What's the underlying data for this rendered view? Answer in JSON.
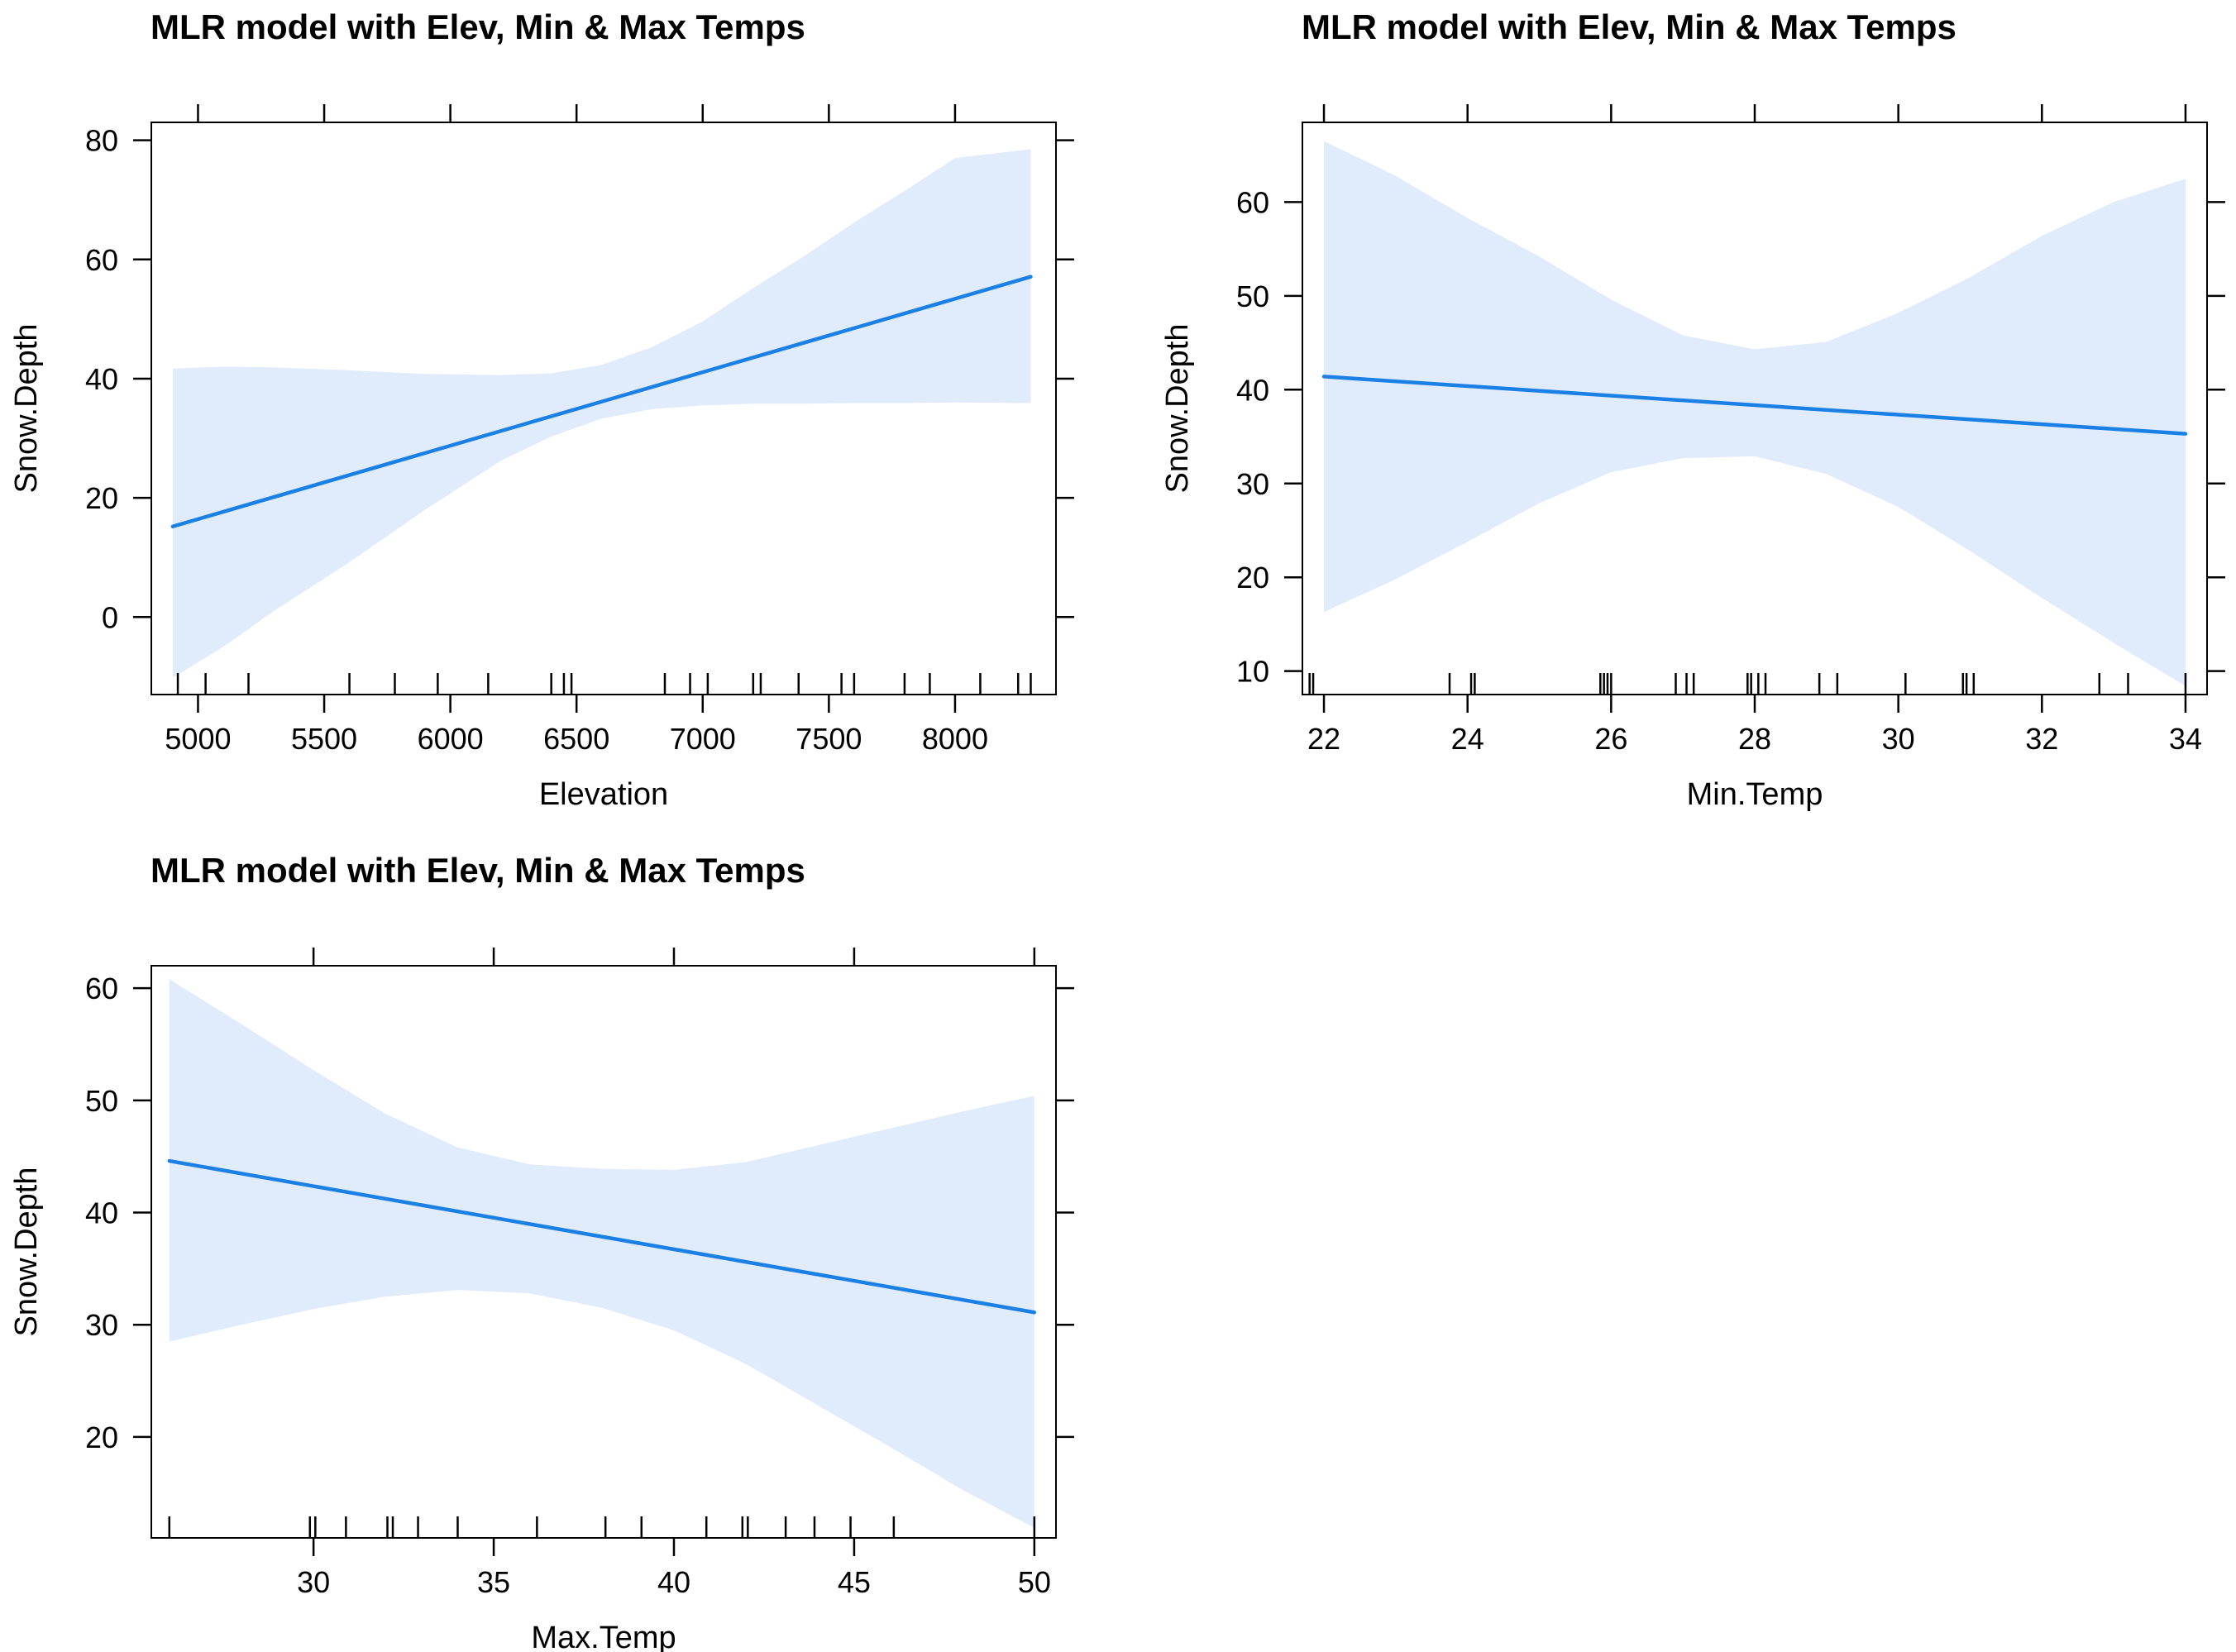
{
  "colors": {
    "band": "#e0ebfc",
    "line": "#1a80e6"
  },
  "chart_data": [
    {
      "type": "line",
      "title": "MLR model with Elev, Min & Max Temps",
      "xlabel": "Elevation",
      "ylabel": "Snow.Depth",
      "xlim": [
        4815,
        8400
      ],
      "ylim": [
        -13,
        83
      ],
      "xticks": [
        5000,
        5500,
        6000,
        6500,
        7000,
        7500,
        8000
      ],
      "xtick_labels": [
        "5000",
        "5500",
        "6000",
        "6500",
        "7000",
        "7500",
        "8000"
      ],
      "yticks": [
        0,
        20,
        40,
        60,
        80
      ],
      "ytick_labels": [
        "0",
        "20",
        "40",
        "60",
        "80"
      ],
      "fit": {
        "x": [
          4900,
          8300
        ],
        "y": [
          15.2,
          57.1
        ]
      },
      "band": {
        "x": [
          4900,
          5100,
          5300,
          5600,
          5900,
          6200,
          6400,
          6600,
          6800,
          7000,
          7200,
          7400,
          7600,
          7800,
          8000,
          8300
        ],
        "upper": [
          41.7,
          42.0,
          41.9,
          41.4,
          40.8,
          40.6,
          40.9,
          42.3,
          45.3,
          49.6,
          55.2,
          60.5,
          66.2,
          71.5,
          77.0,
          78.5
        ],
        "lower": [
          -10.2,
          -5.0,
          1.0,
          9.2,
          18.0,
          26.2,
          30.3,
          33.3,
          34.9,
          35.5,
          35.8,
          35.8,
          35.9,
          35.9,
          36.0,
          35.9
        ]
      },
      "rug": [
        4920,
        5030,
        5200,
        5600,
        5780,
        5950,
        6150,
        6400,
        6450,
        6480,
        6850,
        6950,
        7020,
        7200,
        7230,
        7380,
        7550,
        7600,
        7800,
        7900,
        8100,
        8250,
        8300
      ]
    },
    {
      "type": "line",
      "title": "MLR model with Elev, Min & Max Temps",
      "xlabel": "Min.Temp",
      "ylabel": "Snow.Depth",
      "xlim": [
        21.7,
        34.3
      ],
      "ylim": [
        7.5,
        68.5
      ],
      "xticks": [
        22,
        24,
        26,
        28,
        30,
        32,
        34
      ],
      "xtick_labels": [
        "22",
        "24",
        "26",
        "28",
        "30",
        "32",
        "34"
      ],
      "yticks": [
        10,
        20,
        30,
        40,
        50,
        60
      ],
      "ytick_labels": [
        "10",
        "20",
        "30",
        "40",
        "50",
        "60"
      ],
      "fit": {
        "x": [
          22,
          34
        ],
        "y": [
          41.4,
          35.3
        ]
      },
      "band": {
        "x": [
          22,
          23,
          24,
          25,
          26,
          27,
          28,
          29,
          30,
          31,
          32,
          33,
          34
        ],
        "upper": [
          66.5,
          62.8,
          58.3,
          54.2,
          49.6,
          45.8,
          44.3,
          45.1,
          48.2,
          52.0,
          56.4,
          60.0,
          62.5
        ],
        "lower": [
          16.3,
          19.8,
          23.8,
          27.9,
          31.2,
          32.7,
          32.9,
          31.0,
          27.5,
          22.8,
          17.8,
          13.0,
          8.4
        ]
      },
      "rug": [
        21.8,
        21.85,
        23.75,
        24.05,
        24.1,
        25.85,
        25.9,
        25.95,
        26.0,
        26.9,
        27.05,
        27.15,
        27.9,
        27.95,
        28.05,
        28.15,
        28.9,
        29.15,
        30.1,
        30.9,
        30.95,
        31.05,
        32.8,
        33.2,
        34.0
      ]
    },
    {
      "type": "line",
      "title": "MLR model with Elev, Min & Max Temps",
      "xlabel": "Max.Temp",
      "ylabel": "Snow.Depth",
      "xlim": [
        25.5,
        50.6
      ],
      "ylim": [
        11,
        62
      ],
      "xticks": [
        30,
        35,
        40,
        45,
        50
      ],
      "xtick_labels": [
        "30",
        "35",
        "40",
        "45",
        "50"
      ],
      "yticks": [
        20,
        30,
        40,
        50,
        60
      ],
      "ytick_labels": [
        "20",
        "30",
        "40",
        "50",
        "60"
      ],
      "fit": {
        "x": [
          26,
          50
        ],
        "y": [
          44.6,
          31.1
        ]
      },
      "band": {
        "x": [
          26,
          28,
          30,
          32,
          34,
          36,
          38,
          40,
          42,
          44,
          46,
          48,
          50
        ],
        "upper": [
          60.8,
          56.8,
          52.7,
          48.8,
          45.8,
          44.3,
          43.9,
          43.8,
          44.5,
          46.0,
          47.5,
          49.0,
          50.4
        ],
        "lower": [
          28.5,
          30.0,
          31.4,
          32.5,
          33.1,
          32.8,
          31.5,
          29.5,
          26.5,
          22.8,
          19.1,
          15.3,
          11.9
        ]
      },
      "rug": [
        26,
        29.9,
        30.05,
        30.9,
        32.05,
        32.2,
        32.9,
        34.0,
        36.2,
        38.1,
        39.1,
        40.9,
        41.9,
        42.05,
        43.1,
        43.9,
        44.9,
        46.1,
        50.0
      ]
    }
  ]
}
